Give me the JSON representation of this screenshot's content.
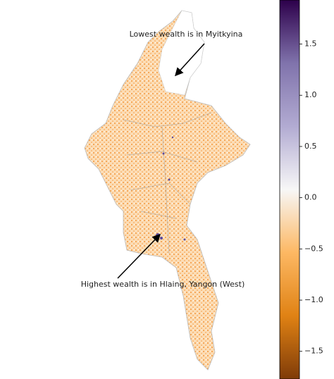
{
  "chart_data": {
    "type": "map",
    "annotations": [
      "Lowest wealth is in Myitkyina",
      "Highest wealth is in Hlaing, Yangon (West)"
    ],
    "colorbar": {
      "lim": [
        -1.77,
        1.93
      ],
      "ticks": [
        {
          "value": -1.5,
          "label": "−1.5"
        },
        {
          "value": -1.0,
          "label": "−1.0"
        },
        {
          "value": -0.5,
          "label": "−0.5"
        },
        {
          "value": 0.0,
          "label": "0.0"
        },
        0.5,
        {
          "value": 1.0,
          "label": "1.0"
        },
        1.5
      ],
      "colors": [
        "#7f3b08",
        "#e08214",
        "#fdb863",
        "#f7f7f7",
        "#b2abd2",
        "#8073ac",
        "#2d004b"
      ]
    }
  }
}
